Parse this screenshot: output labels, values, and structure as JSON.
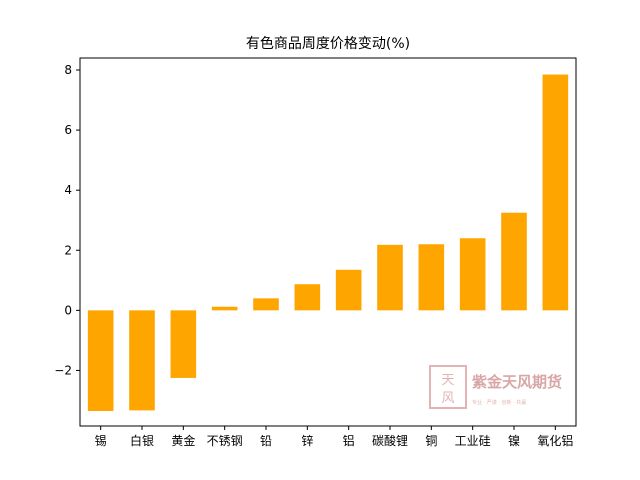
{
  "chart_data": {
    "type": "bar",
    "title": "有色商品周度价格变动(%)",
    "xlabel": "",
    "ylabel": "",
    "categories": [
      "锡",
      "白银",
      "黄金",
      "不锈钢",
      "铅",
      "锌",
      "铝",
      "碳酸锂",
      "铜",
      "工业硅",
      "镍",
      "氧化铝"
    ],
    "values": [
      -3.35,
      -3.33,
      -2.25,
      0.12,
      0.4,
      0.87,
      1.35,
      2.18,
      2.2,
      2.4,
      3.25,
      7.85
    ],
    "ylim": [
      -3.85,
      8.4
    ],
    "yticks": [
      -2,
      0,
      2,
      4,
      6,
      8
    ],
    "ytick_labels": [
      "−2",
      "0",
      "2",
      "4",
      "6",
      "8"
    ],
    "bar_color": "#ffa500",
    "grid": false,
    "legend": "none"
  },
  "watermark": {
    "seal_chars": [
      "天",
      "风"
    ],
    "text": "紫金天风期货",
    "subtext": "专业 · 严谨 · 创新 · 共赢",
    "color": "#d9a6a6"
  }
}
